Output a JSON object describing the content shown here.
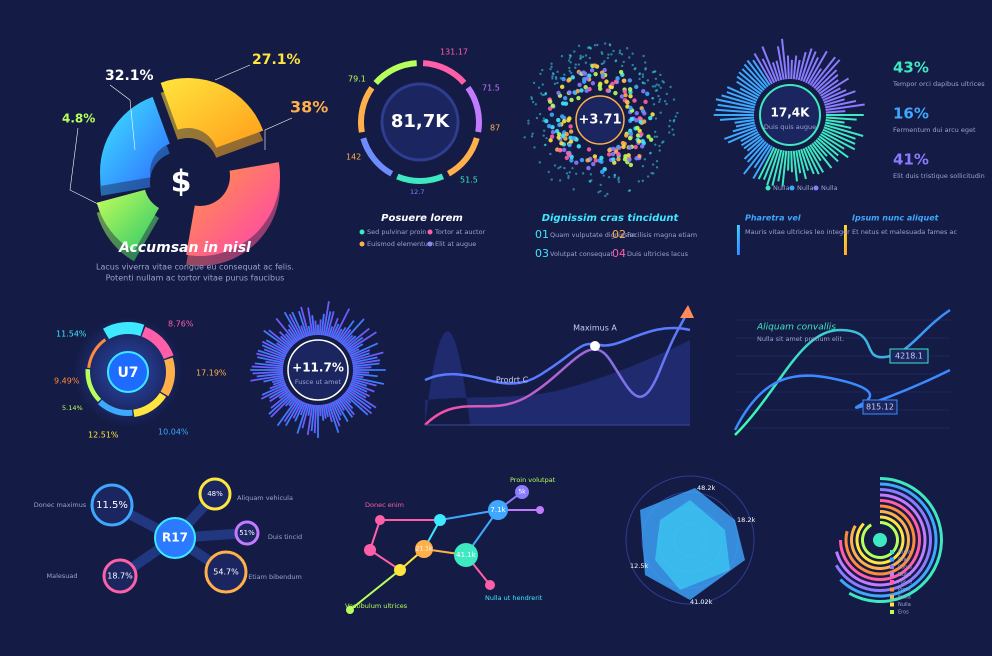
{
  "revenue_pie": {
    "labels": [
      "32.1%",
      "27.1%",
      "4.8%",
      "38%"
    ],
    "symbol": "$",
    "title": "Accumsan in nisl",
    "body": [
      "Lacus viverra vitae congue eu consequat ac felis.",
      "Potenti nullam ac tortor vitae purus faucibus"
    ]
  },
  "ring_gauge": {
    "value": "81,7K",
    "labels": [
      "131.17",
      "79.1",
      "71.5",
      "87",
      "142",
      "51.5",
      "12.7"
    ],
    "title": "Posuere lorem",
    "legend": [
      "Sed pulvinar proin",
      "Tortor at auctor",
      "Euismod elementum",
      "Elit at augue"
    ]
  },
  "dot_cloud": {
    "value": "+3.71",
    "title": "Dignissim cras tincidunt",
    "items": [
      {
        "num": "01",
        "text": "Quam vulputate dignissim"
      },
      {
        "num": "02",
        "text": "Facilisis magna etiam"
      },
      {
        "num": "03",
        "text": "Volutpat consequat"
      },
      {
        "num": "04",
        "text": "Duis ultricies lacus"
      }
    ]
  },
  "burst_stats": {
    "value": "17,4K",
    "caption": "Duis quis augue",
    "legend": [
      "Nulla",
      "Nulla",
      "Nulla"
    ],
    "stats": [
      {
        "value": "43%",
        "text": "Tempor orci dapibus ultrices"
      },
      {
        "value": "16%",
        "text": "Fermentum dui arcu eget"
      },
      {
        "value": "41%",
        "text": "Elit duis tristique sollicitudin"
      }
    ],
    "notes": [
      {
        "title": "Pharetra vel",
        "text": "Mauris vitae ultricies leo integer"
      },
      {
        "title": "Ipsum nunc aliquet",
        "text": "Et netus et malesuada fames ac"
      }
    ]
  },
  "u7_donut": {
    "value": "U7",
    "labels": [
      "11.54%",
      "8.76%",
      "17.19%",
      "9.49%",
      "5.14%",
      "12.51%",
      "10.04%"
    ]
  },
  "burst_small": {
    "value": "+11.7%",
    "caption": "Fusce ut amet"
  },
  "wave_chart": {
    "labels": [
      "Maximus A",
      "Prodrt C"
    ]
  },
  "line_chart": {
    "title": "Aliquam convallis",
    "subtitle": "Nulla sit amet pretium elit.",
    "labels": [
      "4218.1",
      "815.12"
    ]
  },
  "bubble_map": {
    "center": "R17",
    "nodes": [
      {
        "value": "11.5%",
        "label": "Donec maximus"
      },
      {
        "value": "48%",
        "label": "Aliquam vehicula"
      },
      {
        "value": "51%",
        "label": "Duis tincid"
      },
      {
        "value": "18.7%",
        "label": "Malesuad"
      },
      {
        "value": "54.7%",
        "label": "Etiam bibendum"
      }
    ]
  },
  "network": {
    "labels": [
      "Donec enim",
      "Proin volutpat",
      "Vestibulum ultrices",
      "Nulla ut hendrerit"
    ],
    "values": [
      "41.1k",
      "7.1k",
      "21.1k",
      "5k"
    ]
  },
  "radar": {
    "labels": [
      "48.2k",
      "18.2k",
      "12.5k",
      "41.02k"
    ]
  },
  "radial_bars": {
    "legend": [
      "Nulla",
      "Cras",
      "Purus",
      "Nulla",
      "Fusce",
      "Proin",
      "Nulla",
      "Nulla",
      "Eros"
    ]
  }
}
